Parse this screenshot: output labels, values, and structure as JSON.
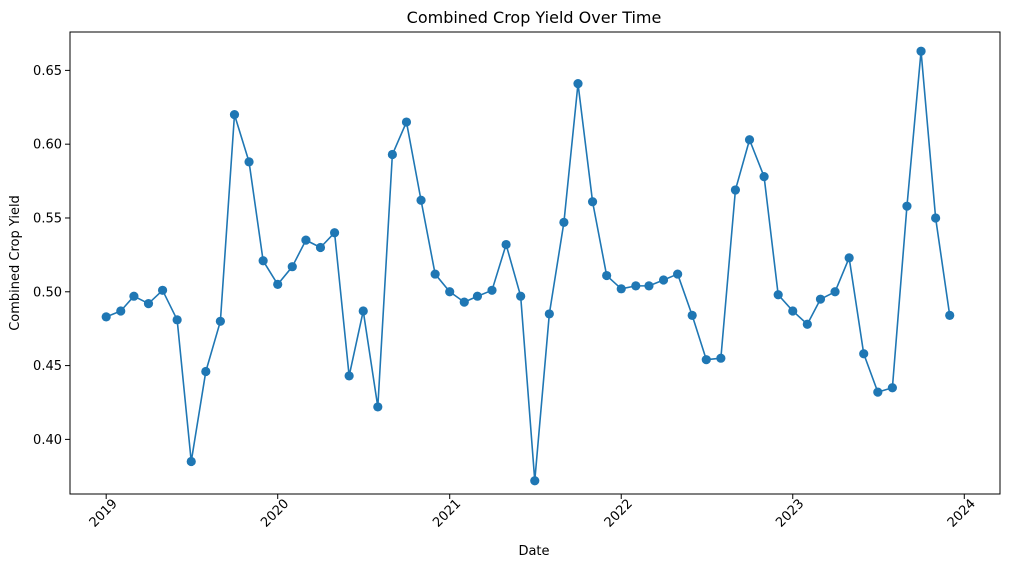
{
  "chart_data": {
    "type": "line",
    "title": "Combined Crop Yield Over Time",
    "xlabel": "Date",
    "ylabel": "Combined Crop Yield",
    "x_tick_labels": [
      "2019",
      "2020",
      "2021",
      "2022",
      "2023",
      "2024"
    ],
    "y_tick_labels": [
      "0.40",
      "0.45",
      "0.50",
      "0.55",
      "0.60",
      "0.65"
    ],
    "y_ticks": [
      0.4,
      0.45,
      0.5,
      0.55,
      0.6,
      0.65
    ],
    "xlim": [
      "2018-10-16",
      "2024-03-17"
    ],
    "ylim": [
      0.363,
      0.676
    ],
    "grid": false,
    "line_color": "#1f77b4",
    "marker": "circle",
    "series": [
      {
        "x": [
          "2019-01-01",
          "2019-02-01",
          "2019-03-01",
          "2019-04-01",
          "2019-05-01",
          "2019-06-01",
          "2019-07-01",
          "2019-08-01",
          "2019-09-01",
          "2019-10-01",
          "2019-11-01",
          "2019-12-01",
          "2020-01-01",
          "2020-02-01",
          "2020-03-01",
          "2020-04-01",
          "2020-05-01",
          "2020-06-01",
          "2020-07-01",
          "2020-08-01",
          "2020-09-01",
          "2020-10-01",
          "2020-11-01",
          "2020-12-01",
          "2021-01-01",
          "2021-02-01",
          "2021-03-01",
          "2021-04-01",
          "2021-05-01",
          "2021-06-01",
          "2021-07-01",
          "2021-08-01",
          "2021-09-01",
          "2021-10-01",
          "2021-11-01",
          "2021-12-01",
          "2022-01-01",
          "2022-02-01",
          "2022-03-01",
          "2022-04-01",
          "2022-05-01",
          "2022-06-01",
          "2022-07-01",
          "2022-08-01",
          "2022-09-01",
          "2022-10-01",
          "2022-11-01",
          "2022-12-01",
          "2023-01-01",
          "2023-02-01",
          "2023-03-01",
          "2023-04-01",
          "2023-05-01",
          "2023-06-01",
          "2023-07-01",
          "2023-08-01",
          "2023-09-01",
          "2023-10-01",
          "2023-11-01",
          "2023-12-01"
        ],
        "values": [
          0.483,
          0.487,
          0.497,
          0.492,
          0.501,
          0.481,
          0.385,
          0.446,
          0.48,
          0.62,
          0.588,
          0.521,
          0.505,
          0.517,
          0.535,
          0.53,
          0.54,
          0.443,
          0.487,
          0.422,
          0.593,
          0.615,
          0.562,
          0.512,
          0.5,
          0.493,
          0.497,
          0.501,
          0.532,
          0.497,
          0.372,
          0.485,
          0.547,
          0.641,
          0.561,
          0.511,
          0.502,
          0.504,
          0.504,
          0.508,
          0.512,
          0.484,
          0.454,
          0.455,
          0.569,
          0.603,
          0.578,
          0.498,
          0.487,
          0.478,
          0.495,
          0.5,
          0.523,
          0.458,
          0.432,
          0.435,
          0.558,
          0.663,
          0.55,
          0.484
        ]
      }
    ]
  }
}
